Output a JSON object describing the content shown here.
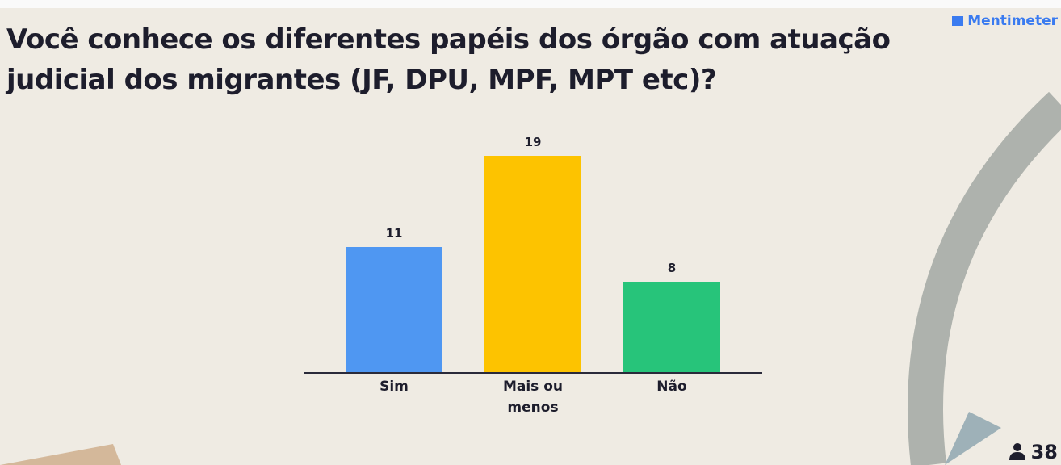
{
  "brand": "Mentimeter",
  "participants": 38,
  "chart_data": {
    "type": "bar",
    "title": "Você conhece os diferentes papéis dos órgão com atuação judicial dos migrantes (JF, DPU, MPF, MPT etc)?",
    "categories": [
      "Sim",
      "Mais ou menos",
      "Não"
    ],
    "values": [
      11,
      19,
      8
    ],
    "colors": [
      "#4f97f2",
      "#fdc300",
      "#27c47a"
    ]
  }
}
